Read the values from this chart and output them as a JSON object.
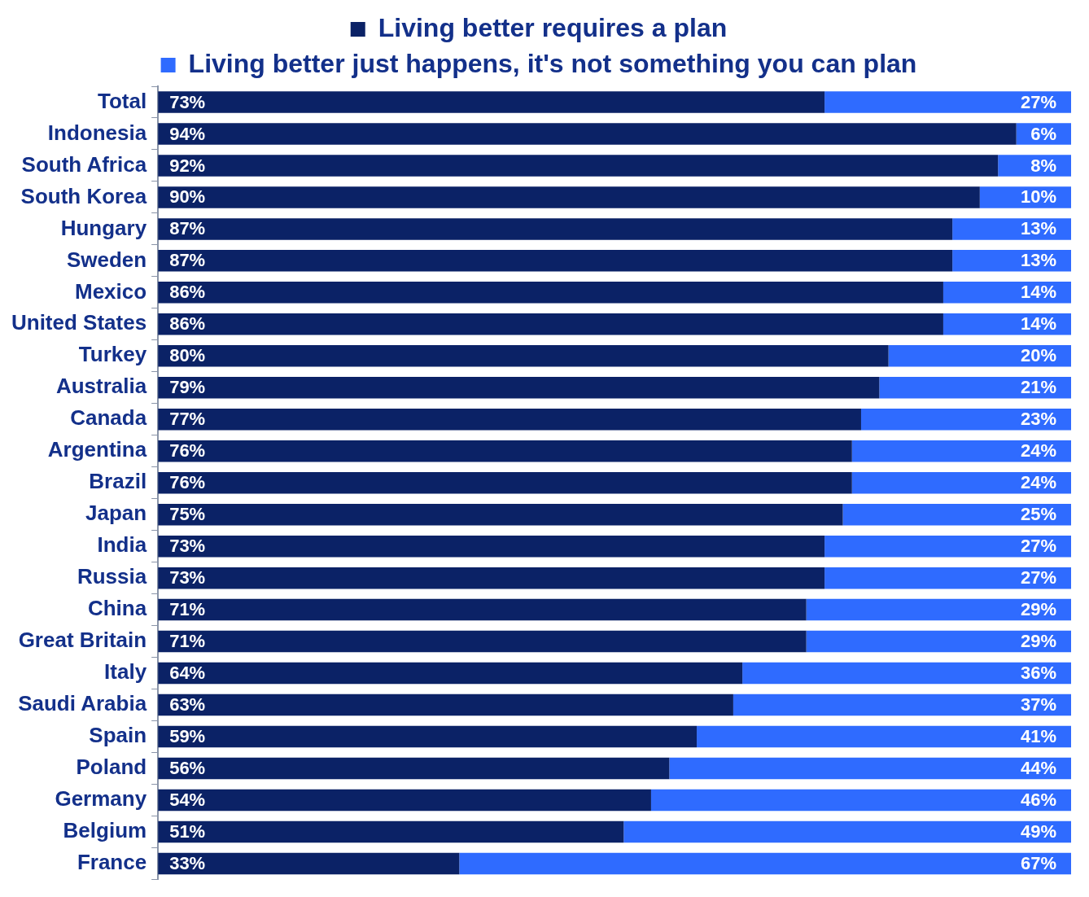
{
  "chart_data": {
    "type": "bar",
    "orientation": "horizontal",
    "stacked": true,
    "legend": "top",
    "tick_labels": "y",
    "xlim": [
      0,
      100
    ],
    "categories": [
      "Total",
      "Indonesia",
      "South Africa",
      "South Korea",
      "Hungary",
      "Sweden",
      "Mexico",
      "United States",
      "Turkey",
      "Australia",
      "Canada",
      "Argentina",
      "Brazil",
      "Japan",
      "India",
      "Russia",
      "China",
      "Great Britain",
      "Italy",
      "Saudi Arabia",
      "Spain",
      "Poland",
      "Germany",
      "Belgium",
      "France"
    ],
    "series": [
      {
        "name": "Living better requires a plan",
        "color": "#0b2266",
        "values": [
          73,
          94,
          92,
          90,
          87,
          87,
          86,
          86,
          80,
          79,
          77,
          76,
          76,
          75,
          73,
          73,
          71,
          71,
          64,
          63,
          59,
          56,
          54,
          51,
          33
        ],
        "value_labels": [
          "73%",
          "94%",
          "92%",
          "90%",
          "87%",
          "87%",
          "86%",
          "86%",
          "80%",
          "79%",
          "77%",
          "76%",
          "76%",
          "75%",
          "73%",
          "73%",
          "71%",
          "71%",
          "64%",
          "63%",
          "59%",
          "56%",
          "54%",
          "51%",
          "33%"
        ]
      },
      {
        "name": "Living better just happens, it's not something you can plan",
        "color": "#2f6bff",
        "values": [
          27,
          6,
          8,
          10,
          13,
          13,
          14,
          14,
          20,
          21,
          23,
          24,
          24,
          25,
          27,
          27,
          29,
          29,
          36,
          37,
          41,
          44,
          46,
          49,
          67
        ],
        "value_labels": [
          "27%",
          "6%",
          "8%",
          "10%",
          "13%",
          "13%",
          "14%",
          "14%",
          "20%",
          "21%",
          "23%",
          "24%",
          "24%",
          "25%",
          "27%",
          "27%",
          "29%",
          "29%",
          "36%",
          "37%",
          "41%",
          "44%",
          "46%",
          "49%",
          "67%"
        ]
      }
    ]
  }
}
